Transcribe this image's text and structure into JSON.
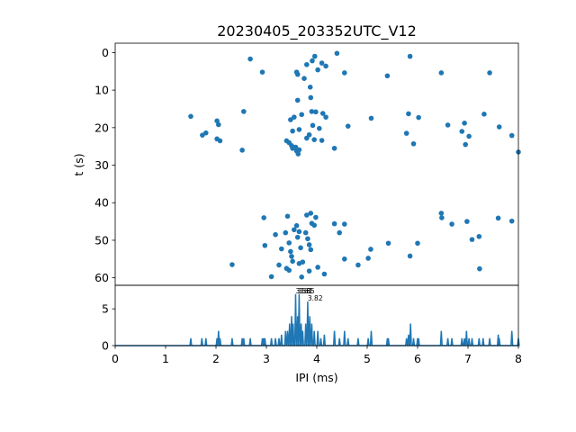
{
  "title": "20230405_203352UTC_V12",
  "colors": {
    "series": "#1f77b4",
    "axes": "#000000",
    "background": "#ffffff"
  },
  "chart_data": [
    {
      "type": "scatter",
      "xlabel": "",
      "ylabel": "t (s)",
      "xlim": [
        0,
        8
      ],
      "ylim": [
        62,
        -2.5
      ],
      "yticks": [
        0,
        10,
        20,
        30,
        40,
        50,
        60
      ],
      "ytick_labels": [
        "0",
        "10",
        "20",
        "30",
        "40",
        "50",
        "60"
      ],
      "grid": false,
      "points": [
        [
          2.68,
          1.7
        ],
        [
          2.92,
          5.2
        ],
        [
          3.6,
          5.2
        ],
        [
          3.62,
          5.8
        ],
        [
          3.8,
          3.2
        ],
        [
          3.91,
          2.2
        ],
        [
          3.96,
          1.0
        ],
        [
          4.02,
          4.6
        ],
        [
          4.1,
          2.8
        ],
        [
          4.18,
          3.6
        ],
        [
          4.4,
          0.2
        ],
        [
          4.55,
          5.4
        ],
        [
          5.4,
          6.2
        ],
        [
          5.85,
          1.0
        ],
        [
          6.47,
          5.4
        ],
        [
          7.43,
          5.4
        ],
        [
          3.75,
          6.9
        ],
        [
          3.87,
          9.2
        ],
        [
          3.62,
          12.7
        ],
        [
          3.88,
          12.0
        ],
        [
          1.5,
          17.0
        ],
        [
          2.02,
          18.2
        ],
        [
          2.05,
          19.2
        ],
        [
          1.73,
          22.0
        ],
        [
          1.8,
          21.4
        ],
        [
          2.08,
          23.5
        ],
        [
          2.02,
          23.0
        ],
        [
          2.55,
          15.7
        ],
        [
          2.52,
          26.0
        ],
        [
          3.48,
          17.9
        ],
        [
          3.55,
          17.2
        ],
        [
          3.7,
          16.5
        ],
        [
          3.52,
          20.9
        ],
        [
          3.65,
          20.5
        ],
        [
          3.85,
          21.9
        ],
        [
          3.9,
          15.7
        ],
        [
          3.98,
          15.8
        ],
        [
          3.92,
          19.4
        ],
        [
          4.05,
          20.2
        ],
        [
          4.12,
          16.2
        ],
        [
          4.18,
          17.2
        ],
        [
          3.4,
          23.5
        ],
        [
          3.45,
          24.0
        ],
        [
          3.5,
          24.8
        ],
        [
          3.52,
          25.5
        ],
        [
          3.58,
          25.2
        ],
        [
          3.6,
          26.2
        ],
        [
          3.63,
          27.0
        ],
        [
          3.65,
          25.9
        ],
        [
          3.8,
          22.8
        ],
        [
          3.95,
          23.2
        ],
        [
          4.1,
          23.4
        ],
        [
          4.35,
          25.5
        ],
        [
          4.62,
          19.6
        ],
        [
          5.08,
          17.5
        ],
        [
          5.78,
          21.5
        ],
        [
          5.82,
          16.3
        ],
        [
          5.92,
          24.3
        ],
        [
          6.02,
          17.3
        ],
        [
          6.6,
          19.3
        ],
        [
          6.88,
          21.0
        ],
        [
          6.93,
          18.8
        ],
        [
          6.95,
          24.5
        ],
        [
          7.02,
          22.3
        ],
        [
          7.32,
          16.4
        ],
        [
          7.62,
          19.8
        ],
        [
          7.87,
          22.1
        ],
        [
          8.0,
          26.5
        ],
        [
          2.95,
          44.0
        ],
        [
          3.18,
          48.5
        ],
        [
          3.3,
          52.3
        ],
        [
          3.38,
          48.0
        ],
        [
          3.42,
          43.6
        ],
        [
          3.45,
          50.7
        ],
        [
          3.48,
          53.0
        ],
        [
          3.5,
          54.3
        ],
        [
          3.55,
          47.2
        ],
        [
          3.6,
          46.1
        ],
        [
          3.62,
          49.2
        ],
        [
          3.65,
          47.7
        ],
        [
          3.68,
          52.0
        ],
        [
          3.72,
          55.8
        ],
        [
          3.78,
          48.0
        ],
        [
          3.82,
          49.6
        ],
        [
          3.85,
          51.2
        ],
        [
          3.88,
          52.5
        ],
        [
          3.9,
          45.5
        ],
        [
          3.8,
          43.3
        ],
        [
          3.88,
          42.8
        ],
        [
          3.95,
          46.0
        ],
        [
          3.98,
          43.9
        ],
        [
          4.35,
          45.6
        ],
        [
          4.45,
          48.0
        ],
        [
          4.55,
          45.7
        ],
        [
          2.32,
          56.5
        ],
        [
          2.97,
          51.4
        ],
        [
          3.1,
          59.7
        ],
        [
          3.25,
          56.6
        ],
        [
          3.4,
          57.5
        ],
        [
          3.45,
          58.0
        ],
        [
          3.52,
          55.6
        ],
        [
          3.65,
          56.2
        ],
        [
          3.7,
          59.8
        ],
        [
          3.85,
          58.2
        ],
        [
          4.02,
          57.2
        ],
        [
          4.15,
          59.0
        ],
        [
          4.55,
          55.0
        ],
        [
          4.82,
          56.6
        ],
        [
          5.02,
          54.8
        ],
        [
          5.07,
          52.4
        ],
        [
          5.42,
          50.8
        ],
        [
          5.85,
          54.2
        ],
        [
          6.0,
          50.8
        ],
        [
          6.47,
          42.8
        ],
        [
          6.48,
          44.0
        ],
        [
          6.68,
          45.7
        ],
        [
          6.98,
          45.0
        ],
        [
          7.08,
          49.8
        ],
        [
          7.22,
          49.0
        ],
        [
          7.23,
          57.6
        ],
        [
          7.6,
          44.1
        ],
        [
          7.87,
          44.9
        ]
      ]
    },
    {
      "type": "line",
      "xlabel": "IPI (ms)",
      "ylabel": "",
      "xlim": [
        0,
        8
      ],
      "ylim": [
        0,
        8.2
      ],
      "xticks": [
        0,
        1,
        2,
        3,
        4,
        5,
        6,
        7,
        8
      ],
      "xtick_labels": [
        "0",
        "1",
        "2",
        "3",
        "4",
        "5",
        "6",
        "7",
        "8"
      ],
      "yticks": [
        0,
        5
      ],
      "ytick_labels": [
        "0",
        "5"
      ],
      "grid": false,
      "baseline": 0,
      "peaks": [
        [
          1.5,
          1.0
        ],
        [
          1.72,
          1.0
        ],
        [
          1.8,
          1.0
        ],
        [
          2.02,
          1.0
        ],
        [
          2.05,
          2.0
        ],
        [
          2.08,
          1.0
        ],
        [
          2.32,
          1.0
        ],
        [
          2.52,
          1.0
        ],
        [
          2.55,
          1.0
        ],
        [
          2.68,
          1.0
        ],
        [
          2.92,
          1.0
        ],
        [
          2.95,
          1.0
        ],
        [
          2.97,
          1.0
        ],
        [
          3.1,
          1.0
        ],
        [
          3.18,
          1.0
        ],
        [
          3.25,
          1.0
        ],
        [
          3.3,
          1.5
        ],
        [
          3.38,
          2.0
        ],
        [
          3.42,
          2.0
        ],
        [
          3.46,
          3.0
        ],
        [
          3.5,
          4.0
        ],
        [
          3.53,
          3.0
        ],
        [
          3.58,
          7.0
        ],
        [
          3.62,
          4.0
        ],
        [
          3.65,
          7.0
        ],
        [
          3.69,
          3.0
        ],
        [
          3.72,
          2.0
        ],
        [
          3.78,
          3.0
        ],
        [
          3.82,
          6.0
        ],
        [
          3.86,
          4.0
        ],
        [
          3.9,
          3.0
        ],
        [
          3.95,
          2.0
        ],
        [
          4.02,
          2.0
        ],
        [
          4.08,
          1.0
        ],
        [
          4.15,
          1.5
        ],
        [
          4.35,
          2.0
        ],
        [
          4.45,
          1.0
        ],
        [
          4.55,
          2.0
        ],
        [
          4.62,
          1.0
        ],
        [
          4.82,
          1.0
        ],
        [
          5.02,
          1.0
        ],
        [
          5.08,
          2.0
        ],
        [
          5.4,
          1.0
        ],
        [
          5.42,
          1.0
        ],
        [
          5.78,
          1.0
        ],
        [
          5.82,
          1.5
        ],
        [
          5.86,
          3.0
        ],
        [
          5.92,
          1.0
        ],
        [
          6.0,
          1.0
        ],
        [
          6.02,
          1.0
        ],
        [
          6.47,
          2.0
        ],
        [
          6.6,
          1.0
        ],
        [
          6.68,
          1.0
        ],
        [
          6.88,
          1.0
        ],
        [
          6.93,
          1.0
        ],
        [
          6.97,
          2.0
        ],
        [
          7.02,
          1.0
        ],
        [
          7.08,
          1.0
        ],
        [
          7.22,
          1.0
        ],
        [
          7.3,
          1.0
        ],
        [
          7.43,
          1.0
        ],
        [
          7.6,
          1.5
        ],
        [
          7.62,
          1.0
        ],
        [
          7.87,
          2.0
        ],
        [
          8.0,
          1.0
        ]
      ],
      "annotations": [
        {
          "text": "3.58",
          "x": 3.58,
          "y": 7.0
        },
        {
          "text": "3.61",
          "x": 3.62,
          "y": 7.0
        },
        {
          "text": "3.65",
          "x": 3.66,
          "y": 7.0
        },
        {
          "text": "3.82",
          "x": 3.82,
          "y": 6.0
        }
      ]
    }
  ]
}
